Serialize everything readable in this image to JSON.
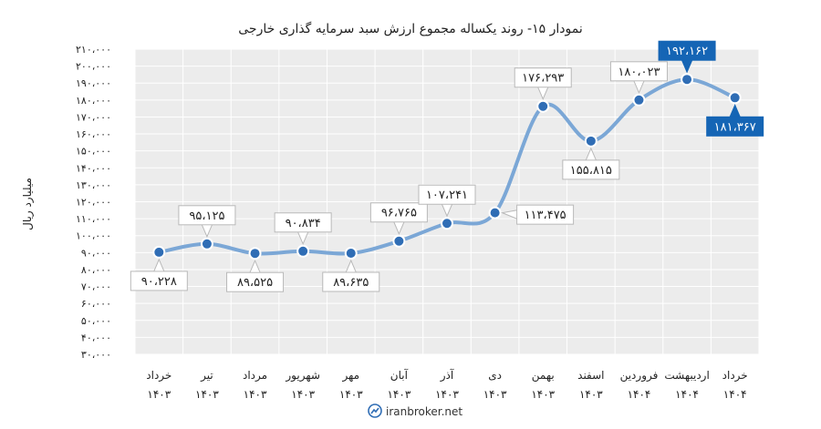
{
  "chart_data": {
    "type": "line",
    "title": "نمودار ۱۵- روند یکساله مجموع ارزش سبد سرمایه گذاری خارجی",
    "ylabel": "میلیارد ریال",
    "xlabel": "",
    "categories": [
      [
        "خرداد",
        "۱۴۰۳"
      ],
      [
        "تیر",
        "۱۴۰۳"
      ],
      [
        "مرداد",
        "۱۴۰۳"
      ],
      [
        "شهریور",
        "۱۴۰۳"
      ],
      [
        "مهر",
        "۱۴۰۳"
      ],
      [
        "آبان",
        "۱۴۰۳"
      ],
      [
        "آذر",
        "۱۴۰۳"
      ],
      [
        "دی",
        "۱۴۰۳"
      ],
      [
        "بهمن",
        "۱۴۰۳"
      ],
      [
        "اسفند",
        "۱۴۰۳"
      ],
      [
        "فروردین",
        "۱۴۰۴"
      ],
      [
        "اردیبهشت",
        "۱۴۰۴"
      ],
      [
        "خرداد",
        "۱۴۰۴"
      ]
    ],
    "values": [
      90228,
      95125,
      89525,
      90834,
      89635,
      96765,
      107241,
      113475,
      176293,
      155815,
      180023,
      192162,
      181367
    ],
    "value_labels": [
      "۹۰،۲۲۸",
      "۹۵،۱۲۵",
      "۸۹،۵۲۵",
      "۹۰،۸۳۴",
      "۸۹،۶۳۵",
      "۹۶،۷۶۵",
      "۱۰۷،۲۴۱",
      "۱۱۳،۴۷۵",
      "۱۷۶،۲۹۳",
      "۱۵۵،۸۱۵",
      "۱۸۰،۰۲۳",
      "۱۹۲،۱۶۲",
      "۱۸۱،۳۶۷"
    ],
    "label_positions": [
      "below",
      "above",
      "below",
      "above",
      "below",
      "above",
      "above",
      "right",
      "above",
      "below",
      "above",
      "above",
      "below"
    ],
    "highlighted": [
      11,
      12
    ],
    "ylim": [
      30000,
      210000
    ],
    "yticks": [
      30000,
      40000,
      50000,
      60000,
      70000,
      80000,
      90000,
      100000,
      110000,
      120000,
      130000,
      140000,
      150000,
      160000,
      170000,
      180000,
      190000,
      200000,
      210000
    ],
    "ytick_labels": [
      "۳۰،۰۰۰",
      "۴۰،۰۰۰",
      "۵۰،۰۰۰",
      "۶۰،۰۰۰",
      "۷۰،۰۰۰",
      "۸۰،۰۰۰",
      "۹۰،۰۰۰",
      "۱۰۰،۰۰۰",
      "۱۱۰،۰۰۰",
      "۱۲۰،۰۰۰",
      "۱۳۰،۰۰۰",
      "۱۴۰،۰۰۰",
      "۱۵۰،۰۰۰",
      "۱۶۰،۰۰۰",
      "۱۷۰،۰۰۰",
      "۱۸۰،۰۰۰",
      "۱۹۰،۰۰۰",
      "۲۰۰،۰۰۰",
      "۲۱۰،۰۰۰"
    ],
    "grid": true,
    "colors": {
      "line": "#7ba7d6",
      "marker": "#2f6db5",
      "highlight": "#1565b5",
      "plot_bg": "#ececec",
      "grid": "#ffffff"
    }
  },
  "watermark": {
    "text": "iranbroker.net"
  }
}
